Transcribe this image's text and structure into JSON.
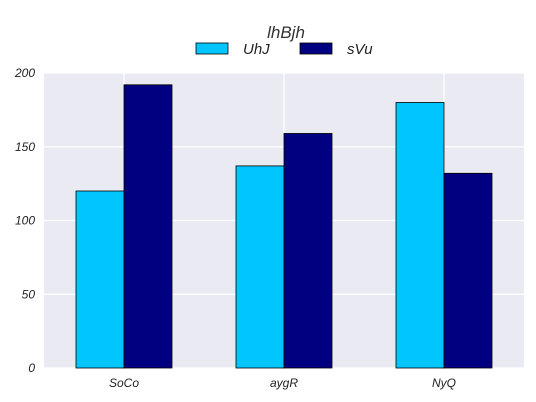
{
  "chart_data": {
    "type": "bar",
    "title": "lhBjh",
    "categories": [
      "SoCo",
      "aygR",
      "NyQ"
    ],
    "series": [
      {
        "name": "UhJ",
        "values": [
          120,
          137,
          180
        ],
        "color": "#00c5ff"
      },
      {
        "name": "sVu",
        "values": [
          192,
          159,
          132
        ],
        "color": "#000080"
      }
    ],
    "ylim": [
      0,
      200
    ],
    "yticks": [
      0,
      50,
      100,
      150,
      200
    ],
    "grid": true,
    "legend_position": "top-center"
  }
}
